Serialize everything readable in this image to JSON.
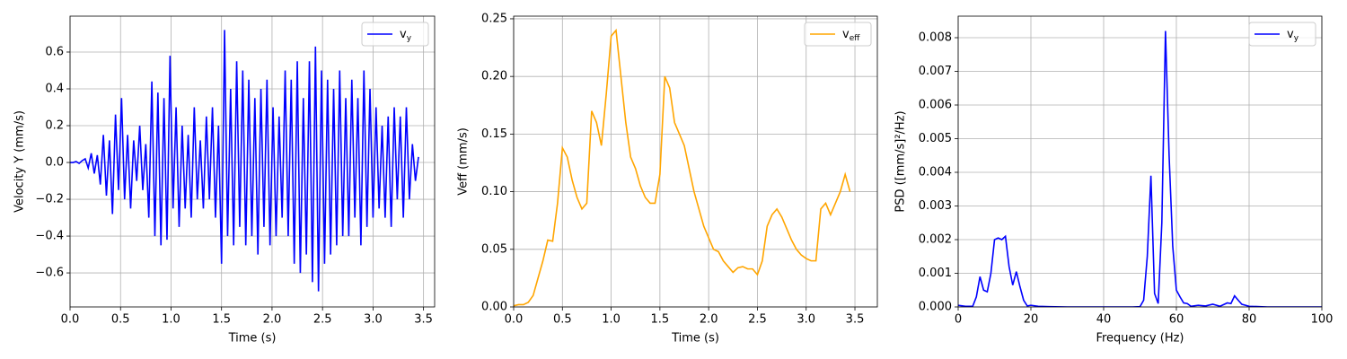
{
  "chart_data": [
    {
      "type": "line",
      "xlabel": "Time (s)",
      "ylabel": "Velocity Y (mm/s)",
      "grid": true,
      "legend": "upper right",
      "xlim": [
        0,
        3.61
      ],
      "ylim": [
        -0.785,
        0.795
      ],
      "xticks": [
        {
          "value": 0,
          "label": "0.0"
        },
        0.5,
        {
          "value": 1,
          "label": "1.0"
        },
        1.5,
        {
          "value": 2,
          "label": "2.0"
        },
        2.5,
        {
          "value": 3,
          "label": "3.0"
        },
        3.5
      ],
      "yticks": [
        {
          "value": -0.6,
          "label": "−0.6"
        },
        {
          "value": -0.4,
          "label": "−0.4"
        },
        {
          "value": -0.2,
          "label": "−0.2"
        },
        {
          "value": 0,
          "label": "0.0"
        },
        0.2,
        0.4,
        0.6
      ],
      "x": [
        0,
        0.03,
        0.06,
        0.09,
        0.12,
        0.15,
        0.18,
        0.21,
        0.24,
        0.27,
        0.3,
        0.33,
        0.36,
        0.39,
        0.42,
        0.45,
        0.48,
        0.51,
        0.54,
        0.57,
        0.6,
        0.63,
        0.66,
        0.69,
        0.72,
        0.75,
        0.78,
        0.81,
        0.84,
        0.87,
        0.9,
        0.93,
        0.96,
        0.99,
        1.02,
        1.05,
        1.08,
        1.11,
        1.14,
        1.17,
        1.2,
        1.23,
        1.26,
        1.29,
        1.32,
        1.35,
        1.38,
        1.41,
        1.44,
        1.47,
        1.5,
        1.53,
        1.56,
        1.59,
        1.62,
        1.65,
        1.68,
        1.71,
        1.74,
        1.77,
        1.8,
        1.83,
        1.86,
        1.89,
        1.92,
        1.95,
        1.98,
        2.01,
        2.04,
        2.07,
        2.1,
        2.13,
        2.16,
        2.19,
        2.22,
        2.25,
        2.28,
        2.31,
        2.34,
        2.37,
        2.4,
        2.43,
        2.46,
        2.49,
        2.52,
        2.55,
        2.58,
        2.61,
        2.64,
        2.67,
        2.7,
        2.73,
        2.76,
        2.79,
        2.82,
        2.85,
        2.88,
        2.91,
        2.94,
        2.97,
        3.0,
        3.03,
        3.06,
        3.09,
        3.12,
        3.15,
        3.18,
        3.21,
        3.24,
        3.27,
        3.3,
        3.33,
        3.36,
        3.39,
        3.42,
        3.45
      ],
      "series": [
        {
          "name": "vy",
          "color": "#0000ff",
          "values": [
            0,
            0,
            0.005,
            -0.005,
            0.01,
            0.02,
            -0.03,
            0.05,
            -0.06,
            0.04,
            -0.12,
            0.15,
            -0.18,
            0.12,
            -0.28,
            0.26,
            -0.15,
            0.35,
            -0.2,
            0.15,
            -0.25,
            0.12,
            -0.1,
            0.2,
            -0.15,
            0.1,
            -0.3,
            0.44,
            -0.4,
            0.38,
            -0.45,
            0.35,
            -0.42,
            0.58,
            -0.25,
            0.3,
            -0.35,
            0.2,
            -0.25,
            0.15,
            -0.3,
            0.3,
            -0.2,
            0.12,
            -0.25,
            0.25,
            -0.2,
            0.3,
            -0.3,
            0.2,
            -0.55,
            0.72,
            -0.4,
            0.4,
            -0.45,
            0.55,
            -0.35,
            0.5,
            -0.45,
            0.45,
            -0.4,
            0.35,
            -0.5,
            0.4,
            -0.35,
            0.45,
            -0.45,
            0.3,
            -0.4,
            0.25,
            -0.3,
            0.5,
            -0.4,
            0.45,
            -0.55,
            0.55,
            -0.6,
            0.35,
            -0.5,
            0.55,
            -0.65,
            0.63,
            -0.7,
            0.5,
            -0.55,
            0.45,
            -0.5,
            0.4,
            -0.45,
            0.5,
            -0.4,
            0.35,
            -0.4,
            0.45,
            -0.3,
            0.35,
            -0.45,
            0.5,
            -0.35,
            0.4,
            -0.3,
            0.3,
            -0.25,
            0.2,
            -0.3,
            0.25,
            -0.35,
            0.3,
            -0.2,
            0.25,
            -0.3,
            0.3,
            -0.2,
            0.1,
            -0.1,
            0.03
          ]
        }
      ]
    },
    {
      "type": "line",
      "xlabel": "Time (s)",
      "ylabel": "Veff (mm/s)",
      "grid": true,
      "legend": "upper right",
      "xlim": [
        0,
        3.73
      ],
      "ylim": [
        0,
        0.2523
      ],
      "xticks": [
        {
          "value": 0,
          "label": "0.0"
        },
        0.5,
        {
          "value": 1,
          "label": "1.0"
        },
        1.5,
        {
          "value": 2,
          "label": "2.0"
        },
        2.5,
        {
          "value": 3,
          "label": "3.0"
        },
        3.5
      ],
      "yticks": [
        {
          "value": 0,
          "label": "0.00"
        },
        0.05,
        {
          "value": 0.1,
          "label": "0.10"
        },
        0.15,
        {
          "value": 0.2,
          "label": "0.20"
        },
        0.25
      ],
      "x": [
        0,
        0.05,
        0.1,
        0.15,
        0.2,
        0.25,
        0.3,
        0.35,
        0.4,
        0.45,
        0.5,
        0.55,
        0.6,
        0.65,
        0.7,
        0.75,
        0.8,
        0.85,
        0.9,
        0.95,
        1.0,
        1.05,
        1.1,
        1.15,
        1.2,
        1.25,
        1.3,
        1.35,
        1.4,
        1.45,
        1.5,
        1.55,
        1.6,
        1.65,
        1.7,
        1.75,
        1.8,
        1.85,
        1.9,
        1.95,
        2.0,
        2.05,
        2.1,
        2.15,
        2.2,
        2.25,
        2.3,
        2.35,
        2.4,
        2.45,
        2.5,
        2.55,
        2.6,
        2.65,
        2.7,
        2.75,
        2.8,
        2.85,
        2.9,
        2.95,
        3.0,
        3.05,
        3.1,
        3.15,
        3.2,
        3.25,
        3.3,
        3.35,
        3.4,
        3.45
      ],
      "series": [
        {
          "name": "veff",
          "color": "#ffa500",
          "values": [
            0.001,
            0.002,
            0.002,
            0.004,
            0.01,
            0.025,
            0.04,
            0.058,
            0.057,
            0.09,
            0.138,
            0.13,
            0.11,
            0.095,
            0.085,
            0.09,
            0.17,
            0.16,
            0.14,
            0.185,
            0.235,
            0.24,
            0.2,
            0.16,
            0.13,
            0.12,
            0.105,
            0.095,
            0.09,
            0.09,
            0.115,
            0.2,
            0.19,
            0.16,
            0.15,
            0.14,
            0.12,
            0.1,
            0.085,
            0.07,
            0.06,
            0.05,
            0.048,
            0.04,
            0.035,
            0.03,
            0.034,
            0.035,
            0.033,
            0.033,
            0.028,
            0.04,
            0.07,
            0.08,
            0.085,
            0.078,
            0.068,
            0.058,
            0.05,
            0.045,
            0.042,
            0.04,
            0.04,
            0.085,
            0.09,
            0.08,
            0.09,
            0.1,
            0.115,
            0.1
          ]
        }
      ]
    },
    {
      "type": "line",
      "xlabel": "Frequency (Hz)",
      "ylabel": "PSD ([mm/s]²/Hz)",
      "grid": true,
      "legend": "upper right",
      "xlim": [
        0,
        100
      ],
      "ylim": [
        0,
        0.00864
      ],
      "xticks": [
        0,
        20,
        40,
        60,
        80,
        100
      ],
      "yticks": [
        {
          "value": 0,
          "label": "0.000"
        },
        0.001,
        0.002,
        0.003,
        0.004,
        0.005,
        0.006,
        0.007,
        0.008
      ],
      "x": [
        0,
        2,
        4,
        5,
        6,
        7,
        8,
        9,
        10,
        11,
        12,
        13,
        14,
        15,
        16,
        17,
        18,
        19,
        20,
        22,
        25,
        30,
        40,
        48,
        50,
        51,
        52,
        53,
        54,
        55,
        56,
        57,
        58,
        59,
        60,
        61,
        62,
        63,
        64,
        66,
        68,
        70,
        72,
        74,
        75,
        76,
        77,
        78,
        80,
        85,
        90,
        100
      ],
      "series": [
        {
          "name": "vy",
          "color": "#0000ff",
          "values": [
            5e-05,
            2e-05,
            2e-05,
            0.0003,
            0.0009,
            0.0005,
            0.00045,
            0.001,
            0.002,
            0.00205,
            0.002,
            0.0021,
            0.0012,
            0.00065,
            0.00105,
            0.0006,
            0.0002,
            3e-05,
            5e-05,
            2e-05,
            1e-05,
            0,
            0,
            0,
            1e-05,
            0.0002,
            0.0015,
            0.0039,
            0.0004,
            0.0001,
            0.0025,
            0.0082,
            0.0045,
            0.0018,
            0.0005,
            0.0003,
            0.00012,
            0.0001,
            2e-05,
            5e-05,
            3e-05,
            8e-05,
            2e-05,
            0.00012,
            0.0001,
            0.00033,
            0.0002,
            8e-05,
            2e-05,
            0,
            0,
            0
          ]
        }
      ]
    }
  ]
}
